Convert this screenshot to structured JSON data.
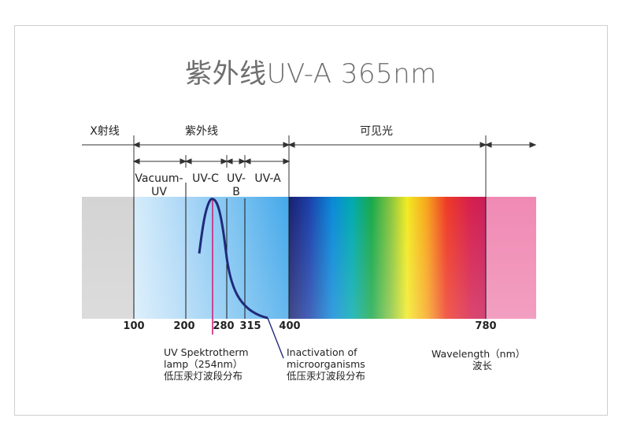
{
  "title": "紫外线UV-A 365nm",
  "regions": {
    "xray": "X射线",
    "uv": "紫外线",
    "visible": "可见光"
  },
  "bands": {
    "vacuum_uv_line1": "Vacuum-",
    "vacuum_uv_line2": "UV",
    "uvc": "UV-C",
    "uvb_line1": "UV-",
    "uvb_line2": "B",
    "uva": "UV-A"
  },
  "ticks": [
    "100",
    "200",
    "280",
    "315",
    "400",
    "780"
  ],
  "annotations": {
    "lamp_line1": "UV Spektrotherm",
    "lamp_line2": "lamp（254nm）",
    "lamp_line3": "低压汞灯波段分布",
    "inact_line1": "Inactivation  of",
    "inact_line2": "microorganisms",
    "inact_line3": "低压汞灯波段分布",
    "wavelength_line1": "Wavelength（nm）",
    "wavelength_line2": "波长"
  },
  "colors": {
    "curve": "#1f2a7a",
    "peak_line": "#d0257a",
    "infrared": "#f08ab4"
  }
}
